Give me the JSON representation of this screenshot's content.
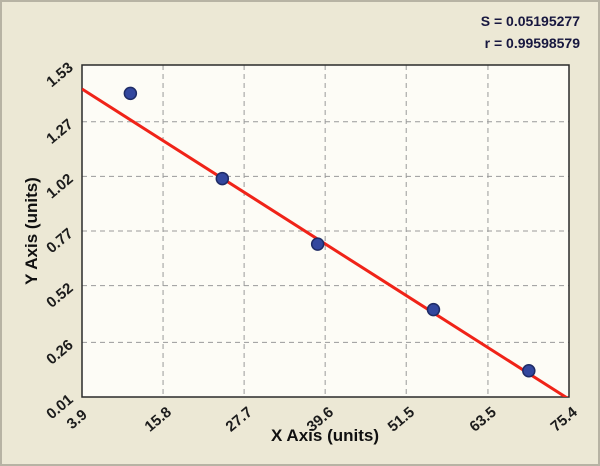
{
  "chart_data": {
    "type": "scatter",
    "title": "",
    "xlabel": "X Axis (units)",
    "ylabel": "Y Axis (units)",
    "xlim": [
      3.9,
      75.4
    ],
    "ylim": [
      0.01,
      1.53
    ],
    "x_ticks": [
      3.9,
      15.8,
      27.7,
      39.6,
      51.5,
      63.5,
      75.4
    ],
    "y_ticks": [
      0.01,
      0.26,
      0.52,
      0.77,
      1.02,
      1.27,
      1.53
    ],
    "grid": "dashed",
    "legend": "none",
    "points": [
      [
        11.0,
        1.4
      ],
      [
        24.5,
        1.01
      ],
      [
        38.5,
        0.71
      ],
      [
        55.5,
        0.41
      ],
      [
        69.5,
        0.13
      ]
    ],
    "fit_line": {
      "x1": 3.9,
      "y1": 1.42,
      "x2": 75.4,
      "y2": 0.0
    },
    "stats": {
      "s_label": "S = 0.05195277",
      "r_label": "r = 0.99598579"
    },
    "colors": {
      "figure_bg": "#ece8d5",
      "plot_bg": "#fdfcf6",
      "grid": "#9a9a9a",
      "frame": "#2a2a2a",
      "line": "#f02318",
      "point": "#33479e",
      "point_edge": "#1f2c66",
      "stats_text": "#17173f",
      "text": "#1c1c1c"
    }
  }
}
